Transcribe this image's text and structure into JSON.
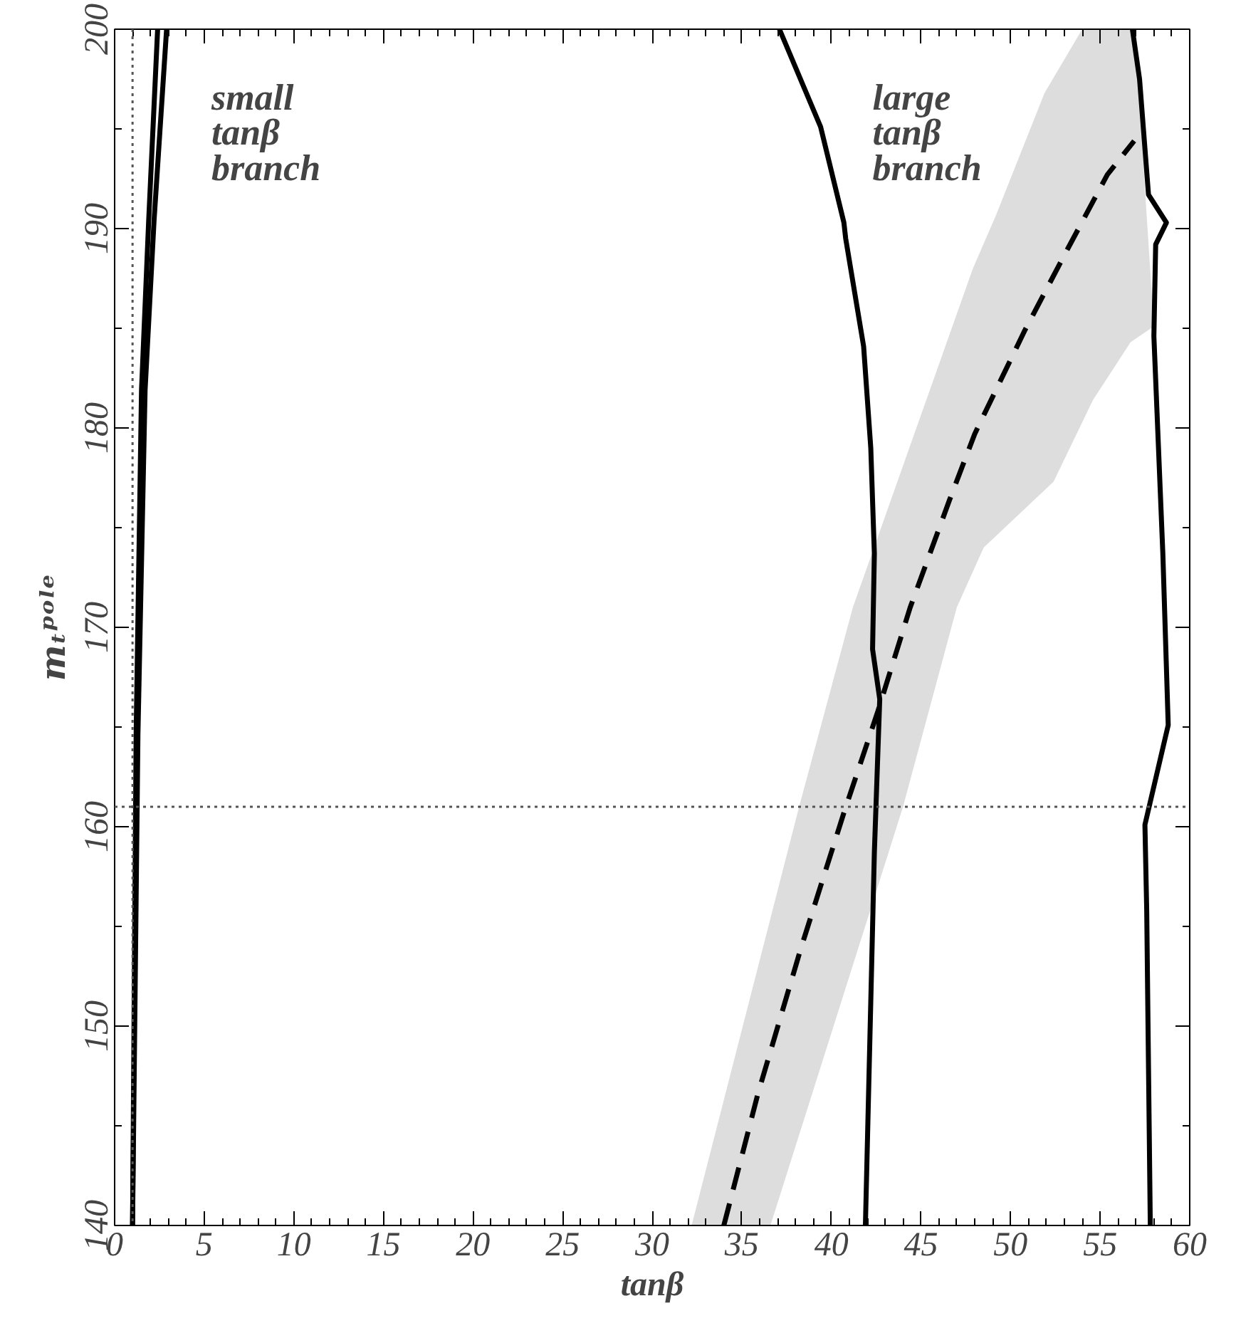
{
  "chart_data": {
    "type": "line",
    "xlabel": "tanβ",
    "ylabel": "mₜᵖᵒˡᵉ",
    "xlim": [
      0,
      60
    ],
    "ylim": [
      140,
      200
    ],
    "xticks": [
      0,
      5,
      10,
      15,
      20,
      25,
      30,
      35,
      40,
      45,
      50,
      55,
      60
    ],
    "yticks": [
      140,
      150,
      160,
      170,
      180,
      190,
      200
    ],
    "grid": false,
    "series": [
      {
        "type": "area",
        "color": "#dddddd",
        "x": [
          32.2,
          38.2,
          41.2,
          47.9,
          49.2,
          51.9,
          54.0,
          57.0,
          57.5,
          58.0,
          56.7,
          54.6,
          52.4,
          48.5,
          47.0,
          44.0,
          36.6
        ],
        "values": [
          140,
          161,
          171,
          188,
          190.7,
          196.8,
          200,
          200,
          192,
          185.1,
          184.3,
          181.4,
          177.3,
          174,
          171,
          161,
          140
        ]
      },
      {
        "color": "#000000",
        "line_style": "solid",
        "x": [
          1.0,
          1.2,
          1.5,
          1.9,
          2.4
        ],
        "values": [
          140,
          164.6,
          181.9,
          190.4,
          200
        ]
      },
      {
        "color": "#000000",
        "line_style": "solid",
        "x": [
          1.0,
          1.3,
          1.7,
          2.2,
          2.9
        ],
        "values": [
          140,
          164.6,
          181.9,
          190.4,
          200
        ]
      },
      {
        "color": "#000000",
        "line_style": "solid",
        "x": [
          41.9,
          42.4,
          42.7,
          42.3,
          42.4,
          42.2,
          41.8,
          40.8,
          40.7,
          39.4,
          37.1
        ],
        "values": [
          140,
          158.7,
          166.4,
          168.9,
          173.7,
          179.0,
          184.1,
          189.5,
          190.3,
          195.1,
          200
        ]
      },
      {
        "color": "#000000",
        "line_style": "solid",
        "x": [
          57.8,
          57.6,
          57.5,
          58.8,
          58.5,
          58.0,
          58.1,
          58.7,
          57.7,
          57.2,
          56.8
        ],
        "values": [
          140,
          155.8,
          160.1,
          165.1,
          173.7,
          184.6,
          189.2,
          190.3,
          191.7,
          197.5,
          200
        ]
      },
      {
        "color": "#000000",
        "line_style": "dashed",
        "x": [
          34.0,
          35.9,
          38.3,
          40.7,
          42.6,
          44.4,
          46.6,
          48.0,
          50.8,
          53.2,
          55.4,
          56.9
        ],
        "values": [
          140,
          146.6,
          153.9,
          160.7,
          165.8,
          171.0,
          176.4,
          179.7,
          184.9,
          189.0,
          192.7,
          194.4
        ]
      }
    ],
    "ref_lines": [
      {
        "axis": "x",
        "value": 1.0,
        "line_style": "dotted",
        "color": "#555555"
      },
      {
        "axis": "y",
        "value": 161,
        "line_style": "dotted",
        "color": "#555555"
      }
    ],
    "annotations": [
      "small\ntanβ\nbranch",
      "large\ntanβ\nbranch"
    ]
  }
}
